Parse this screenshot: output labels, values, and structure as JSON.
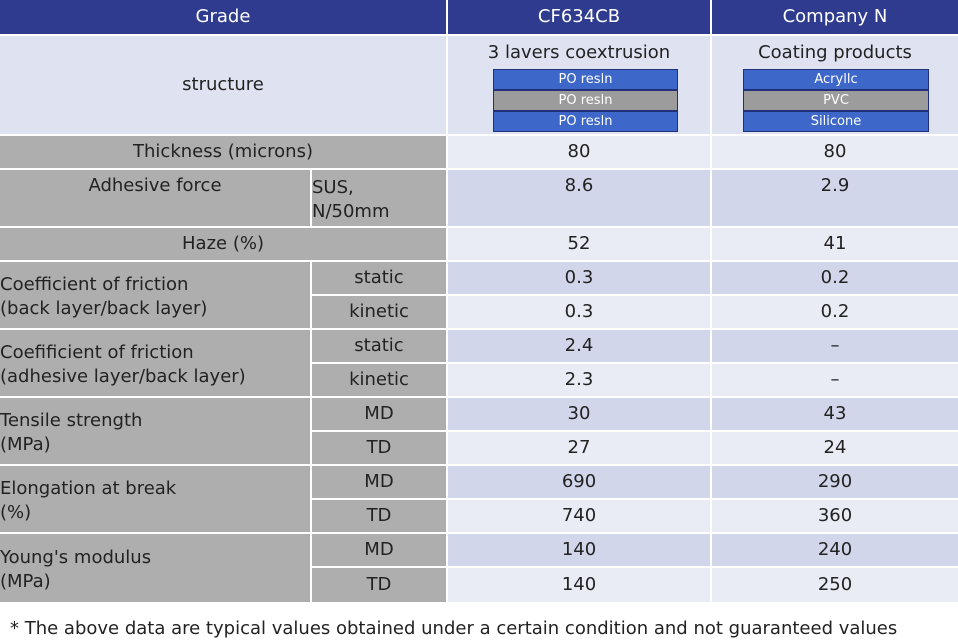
{
  "header": {
    "grade": "Grade",
    "col1": "CF634CB",
    "col2": "Company N"
  },
  "structure": {
    "label": "structure",
    "col1_title": "3 lavers coextrusion",
    "col1_layers": [
      "PO resln",
      "PO resln",
      "PO resln"
    ],
    "col2_title": "Coating products",
    "col2_layers": [
      "Acryllc",
      "PVC",
      "Silicone"
    ]
  },
  "thickness": {
    "label": "Thickness (microns)",
    "v1": "80",
    "v2": "80"
  },
  "adhesive": {
    "label": "Adhesive force",
    "unit_line1": "SUS,",
    "unit_line2": "N/50mm",
    "v1": "8.6",
    "v2": "2.9"
  },
  "haze": {
    "label": "Haze (%)",
    "v1": "52",
    "v2": "41"
  },
  "cof_back": {
    "label_line1": "Coefficient of friction",
    "label_line2": "(back layer/back layer)",
    "static": "static",
    "kinetic": "kinetic",
    "s1": "0.3",
    "s2": "0.2",
    "k1": "0.3",
    "k2": "0.2"
  },
  "cof_adh": {
    "label_line1": "Coefificient of friction",
    "label_line2": "(adhesive layer/back layer)",
    "static": "static",
    "kinetic": "kinetic",
    "s1": "2.4",
    "s2": "–",
    "k1": "2.3",
    "k2": "–"
  },
  "tensile": {
    "label_line1": "Tensile strength",
    "label_line2": "(MPa)",
    "md": "MD",
    "td": "TD",
    "md1": "30",
    "md2": "43",
    "td1": "27",
    "td2": "24"
  },
  "elong": {
    "label_line1": "Elongation at break",
    "label_line2": "(%)",
    "md": "MD",
    "td": "TD",
    "md1": "690",
    "md2": "290",
    "td1": "740",
    "td2": "360"
  },
  "young": {
    "label_line1": "Young's modulus",
    "label_line2": "(MPa)",
    "md": "MD",
    "td": "TD",
    "md1": "140",
    "md2": "240",
    "td1": "140",
    "td2": "250"
  },
  "footnote": "* The above data are typical values obtained under a certain condition and not guaranteed values"
}
